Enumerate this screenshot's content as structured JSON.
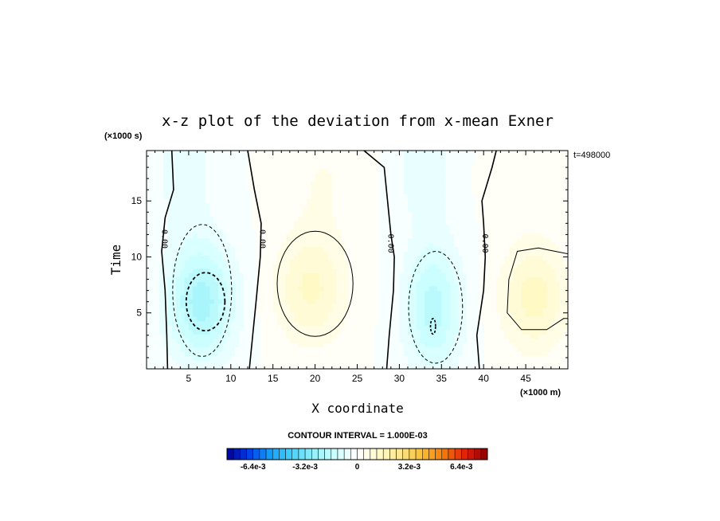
{
  "chart_data": {
    "type": "heatmap",
    "title": "x-z plot of the deviation from x-mean Exner",
    "xlabel": "X coordinate",
    "ylabel": "Time",
    "x_unit": "(×1000 m)",
    "y_unit": "(×1000 s)",
    "xlim": [
      0,
      50
    ],
    "ylim": [
      0,
      19.5
    ],
    "xticks": [
      5,
      10,
      15,
      20,
      25,
      30,
      35,
      40,
      45
    ],
    "yticks": [
      5,
      10,
      15
    ],
    "timestamp": "t=498000",
    "contour_interval": "CONTOUR INTERVAL = 1.000E-03",
    "contour_labels": [
      "0.00",
      "0.00",
      "0.00",
      "0.00"
    ],
    "colorbar": {
      "min": -0.008,
      "max": 0.008,
      "step": 0.0004,
      "tick_labels": [
        "-6.4e-3",
        "-3.2e-3",
        "0",
        "3.2e-3",
        "6.4e-3"
      ],
      "tick_values": [
        -0.0064,
        -0.0032,
        0,
        0.0032,
        0.0064
      ]
    },
    "features": [
      {
        "kind": "low",
        "x": 6.5,
        "y": 6.0,
        "sx": 4.0,
        "sy": 5.2,
        "amp": -0.0022
      },
      {
        "kind": "low",
        "x": 4.5,
        "y": 18.0,
        "sx": 3.5,
        "sy": 6.0,
        "amp": -0.0007
      },
      {
        "kind": "high",
        "x": 19.5,
        "y": 7.2,
        "sx": 4.3,
        "sy": 5.0,
        "amp": 0.0013
      },
      {
        "kind": "high",
        "x": 21.0,
        "y": 17.0,
        "sx": 4.5,
        "sy": 5.0,
        "amp": 0.0004
      },
      {
        "kind": "low",
        "x": 34.0,
        "y": 5.5,
        "sx": 3.4,
        "sy": 5.8,
        "amp": -0.0018
      },
      {
        "kind": "low",
        "x": 33.0,
        "y": 18.0,
        "sx": 3.5,
        "sy": 5.0,
        "amp": -0.0007
      },
      {
        "kind": "high",
        "x": 46.0,
        "y": 6.5,
        "sx": 4.0,
        "sy": 4.8,
        "amp": 0.0014
      },
      {
        "kind": "high",
        "x": 44.0,
        "y": 17.0,
        "sx": 4.0,
        "sy": 4.0,
        "amp": 0.0003
      }
    ]
  }
}
